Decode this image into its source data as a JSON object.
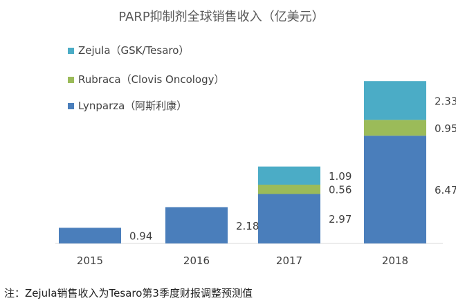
{
  "chart_data": {
    "type": "bar",
    "stacked": true,
    "title": "PARP抑制剂全球销售收入（亿美元）",
    "categories": [
      "2015",
      "2016",
      "2017",
      "2018"
    ],
    "series": [
      {
        "name": "Lynparza（阿斯利康）",
        "values": [
          0.94,
          2.18,
          2.97,
          6.47
        ],
        "color": "#4a7ebb"
      },
      {
        "name": "Rubraca（Clovis Oncology）",
        "values": [
          null,
          null,
          0.56,
          0.95
        ],
        "color": "#9bbb59"
      },
      {
        "name": "Zejula（GSK/Tesaro）",
        "values": [
          null,
          null,
          1.09,
          2.33
        ],
        "color": "#4bacc6"
      }
    ],
    "legend_order": [
      "Zejula（GSK/Tesaro）",
      "Rubraca（Clovis Oncology）",
      "Lynparza（阿斯利康）"
    ],
    "legend_position": "top-left",
    "value_labels": [
      [
        "0.94",
        "2.18",
        "2.97",
        "6.47"
      ],
      [
        null,
        null,
        "0.56",
        "0.95"
      ],
      [
        null,
        null,
        "1.09",
        "2.33"
      ]
    ],
    "ylim": [
      0,
      10
    ],
    "grid": false
  },
  "note": "注：Zejula销售收入为Tesaro第3季度财报调整预测值"
}
